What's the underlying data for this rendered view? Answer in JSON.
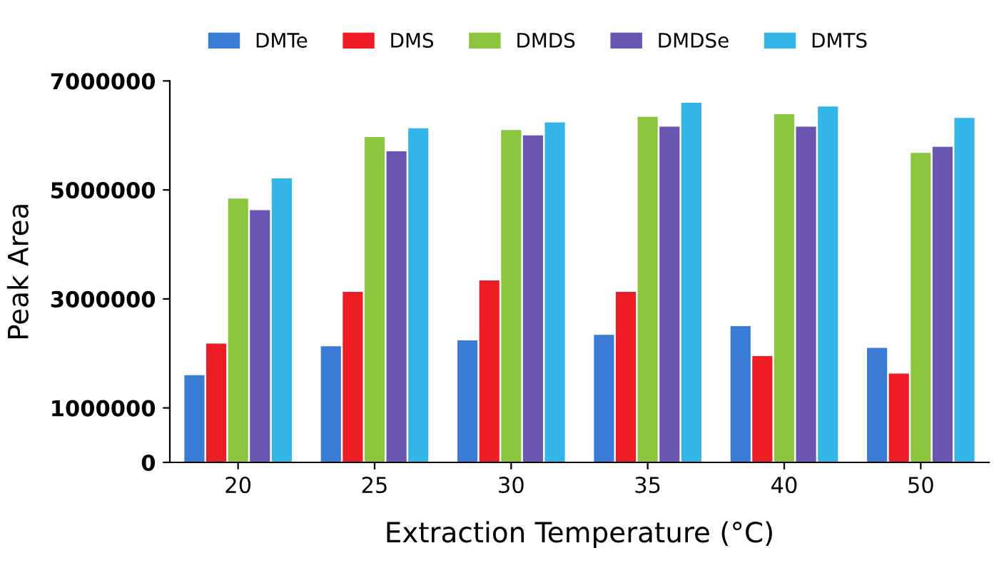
{
  "chart_data": {
    "type": "bar",
    "xlabel": "Extraction Temperature (°C)",
    "ylabel": "Peak Area",
    "categories": [
      "20",
      "25",
      "30",
      "35",
      "40",
      "50"
    ],
    "series": [
      {
        "name": "DMTe",
        "color": "#3a7bd5",
        "values": [
          1600000,
          2130000,
          2240000,
          2340000,
          2500000,
          2100000
        ]
      },
      {
        "name": "DMS",
        "color": "#ee1c25",
        "values": [
          2180000,
          3130000,
          3340000,
          3130000,
          1950000,
          1630000
        ]
      },
      {
        "name": "DMDS",
        "color": "#8cc63f",
        "values": [
          4840000,
          5970000,
          6100000,
          6340000,
          6390000,
          5680000
        ]
      },
      {
        "name": "DMDSe",
        "color": "#6a55b0",
        "values": [
          4630000,
          5710000,
          6000000,
          6160000,
          6160000,
          5790000
        ]
      },
      {
        "name": "DMTS",
        "color": "#33b5e8",
        "values": [
          5210000,
          6130000,
          6240000,
          6600000,
          6530000,
          6320000
        ]
      }
    ],
    "ylim": [
      0,
      7000000
    ],
    "yticks": [
      0,
      1000000,
      3000000,
      5000000,
      7000000
    ],
    "grid": false,
    "legend": "top"
  }
}
